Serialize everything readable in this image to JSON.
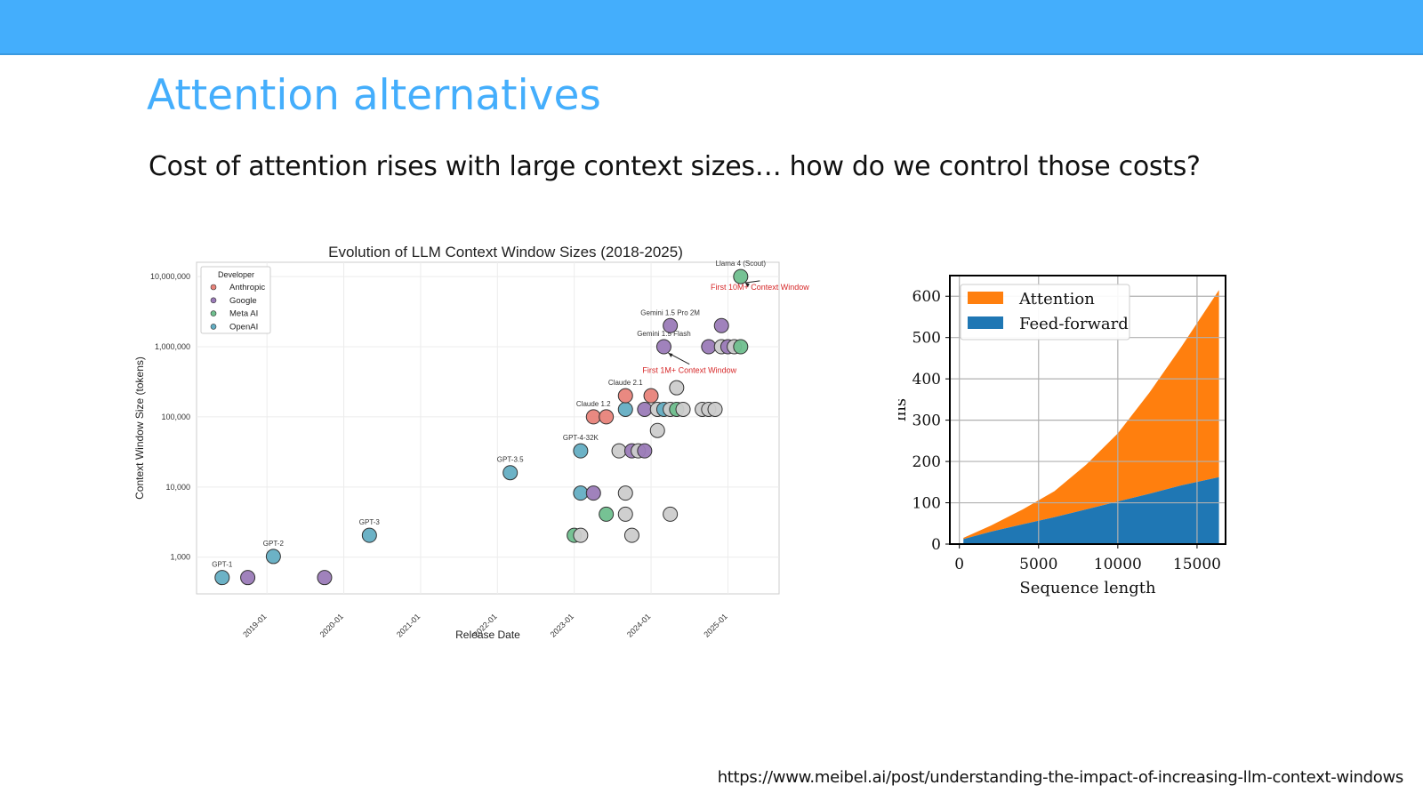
{
  "slide": {
    "title": "Attention alternatives",
    "subtitle": "Cost of attention rises with large context sizes… how do we control those costs?",
    "source": "https://www.meibel.ai/post/understanding-the-impact-of-increasing-llm-context-windows"
  },
  "colors": {
    "header_bar": "#44aefc",
    "title": "#44aefc",
    "Anthropic": "#e8837a",
    "Google": "#9b7bb8",
    "Meta AI": "#6fbf8e",
    "OpenAI": "#64aec3",
    "Other": "#cccccc",
    "Attention": "#ff7f0e",
    "Feed-forward": "#1f77b4",
    "annotation_red": "#d62728"
  },
  "chart_data": [
    {
      "type": "scatter",
      "title": "Evolution of LLM Context Window Sizes (2018-2025)",
      "xlabel": "Release Date",
      "ylabel": "Context Window Size (tokens)",
      "yscale": "log",
      "xlim": [
        "2018-02",
        "2025-09"
      ],
      "ylim": [
        300,
        16000000
      ],
      "x_ticks": [
        "2019-01",
        "2020-01",
        "2021-01",
        "2022-01",
        "2023-01",
        "2024-01",
        "2025-01"
      ],
      "y_ticks": [
        1000,
        10000,
        100000,
        1000000,
        10000000
      ],
      "y_tick_labels": [
        "1,000",
        "10,000",
        "100,000",
        "1,000,000",
        "10,000,000"
      ],
      "grid": true,
      "legend": {
        "title": "Developer",
        "position": "top-left",
        "entries": [
          "Anthropic",
          "Google",
          "Meta AI",
          "OpenAI"
        ]
      },
      "points": [
        {
          "x": "2018-06",
          "y": 512,
          "dev": "OpenAI",
          "label": "GPT-1"
        },
        {
          "x": "2018-10",
          "y": 512,
          "dev": "Google",
          "label": ""
        },
        {
          "x": "2019-02",
          "y": 1024,
          "dev": "OpenAI",
          "label": "GPT-2"
        },
        {
          "x": "2019-10",
          "y": 512,
          "dev": "Google",
          "label": ""
        },
        {
          "x": "2020-05",
          "y": 2048,
          "dev": "OpenAI",
          "label": "GPT-3"
        },
        {
          "x": "2022-03",
          "y": 16000,
          "dev": "OpenAI",
          "label": "GPT-3.5"
        },
        {
          "x": "2023-01",
          "y": 2048,
          "dev": "Meta AI",
          "label": ""
        },
        {
          "x": "2023-02",
          "y": 2048,
          "dev": "Other",
          "label": ""
        },
        {
          "x": "2023-02",
          "y": 8192,
          "dev": "OpenAI",
          "label": ""
        },
        {
          "x": "2023-02",
          "y": 32768,
          "dev": "OpenAI",
          "label": "GPT-4-32K"
        },
        {
          "x": "2023-04",
          "y": 8192,
          "dev": "Google",
          "label": ""
        },
        {
          "x": "2023-04",
          "y": 100000,
          "dev": "Anthropic",
          "label": "Claude 1.2"
        },
        {
          "x": "2023-06",
          "y": 4096,
          "dev": "Meta AI",
          "label": ""
        },
        {
          "x": "2023-06",
          "y": 100000,
          "dev": "Anthropic",
          "label": ""
        },
        {
          "x": "2023-08",
          "y": 32768,
          "dev": "Other",
          "label": ""
        },
        {
          "x": "2023-09",
          "y": 8192,
          "dev": "Other",
          "label": ""
        },
        {
          "x": "2023-09",
          "y": 4096,
          "dev": "Other",
          "label": ""
        },
        {
          "x": "2023-09",
          "y": 128000,
          "dev": "OpenAI",
          "label": ""
        },
        {
          "x": "2023-09",
          "y": 200000,
          "dev": "Anthropic",
          "label": "Claude 2.1"
        },
        {
          "x": "2023-10",
          "y": 2048,
          "dev": "Other",
          "label": ""
        },
        {
          "x": "2023-10",
          "y": 32768,
          "dev": "Google",
          "label": ""
        },
        {
          "x": "2023-11",
          "y": 32768,
          "dev": "Other",
          "label": ""
        },
        {
          "x": "2023-12",
          "y": 32768,
          "dev": "Google",
          "label": ""
        },
        {
          "x": "2023-12",
          "y": 128000,
          "dev": "Google",
          "label": ""
        },
        {
          "x": "2024-01",
          "y": 200000,
          "dev": "Anthropic",
          "label": ""
        },
        {
          "x": "2024-02",
          "y": 64000,
          "dev": "Other",
          "label": ""
        },
        {
          "x": "2024-02",
          "y": 128000,
          "dev": "Other",
          "label": ""
        },
        {
          "x": "2024-03",
          "y": 1000000,
          "dev": "Google",
          "label": "Gemini 1.5 Flash"
        },
        {
          "x": "2024-03",
          "y": 128000,
          "dev": "OpenAI",
          "label": ""
        },
        {
          "x": "2024-04",
          "y": 2000000,
          "dev": "Google",
          "label": "Gemini 1.5 Pro 2M"
        },
        {
          "x": "2024-04",
          "y": 4096,
          "dev": "Other",
          "label": ""
        },
        {
          "x": "2024-04",
          "y": 128000,
          "dev": "Other",
          "label": ""
        },
        {
          "x": "2024-05",
          "y": 128000,
          "dev": "Meta AI",
          "label": ""
        },
        {
          "x": "2024-05",
          "y": 260000,
          "dev": "Other",
          "label": ""
        },
        {
          "x": "2024-06",
          "y": 128000,
          "dev": "Other",
          "label": ""
        },
        {
          "x": "2024-09",
          "y": 128000,
          "dev": "Other",
          "label": ""
        },
        {
          "x": "2024-10",
          "y": 128000,
          "dev": "Other",
          "label": ""
        },
        {
          "x": "2024-10",
          "y": 1000000,
          "dev": "Google",
          "label": ""
        },
        {
          "x": "2024-11",
          "y": 128000,
          "dev": "Other",
          "label": ""
        },
        {
          "x": "2024-12",
          "y": 1000000,
          "dev": "Other",
          "label": ""
        },
        {
          "x": "2024-12",
          "y": 2000000,
          "dev": "Google",
          "label": ""
        },
        {
          "x": "2025-01",
          "y": 1000000,
          "dev": "Google",
          "label": ""
        },
        {
          "x": "2025-02",
          "y": 1000000,
          "dev": "Other",
          "label": ""
        },
        {
          "x": "2025-03",
          "y": 1000000,
          "dev": "Meta AI",
          "label": ""
        },
        {
          "x": "2025-03",
          "y": 10000000,
          "dev": "Meta AI",
          "label": "Llama 4 (Scout)"
        }
      ],
      "annotations": [
        {
          "text": "First 10M+ Context Window",
          "target": {
            "x": "2025-03",
            "y": 10000000
          },
          "text_at": {
            "x": "2025-06",
            "y": 6500000
          }
        },
        {
          "text": "First 1M+ Context Window",
          "target": {
            "x": "2024-03",
            "y": 1000000
          },
          "text_at": {
            "x": "2024-07",
            "y": 420000
          }
        }
      ]
    },
    {
      "type": "area",
      "stacked": true,
      "xlabel": "Sequence length",
      "ylabel": "ms",
      "xlim": [
        -600,
        16800
      ],
      "ylim": [
        0,
        650
      ],
      "x_ticks": [
        0,
        5000,
        10000,
        15000
      ],
      "y_ticks": [
        0,
        100,
        200,
        300,
        400,
        500,
        600
      ],
      "grid": true,
      "legend": {
        "position": "top-left",
        "entries": [
          "Attention",
          "Feed-forward"
        ]
      },
      "x": [
        256,
        2000,
        4000,
        6000,
        8000,
        10000,
        12000,
        14000,
        16384
      ],
      "series": [
        {
          "name": "Feed-forward",
          "values": [
            12,
            30,
            48,
            65,
            84,
            103,
            122,
            142,
            162
          ]
        },
        {
          "name": "Attention",
          "values": [
            3,
            15,
            36,
            63,
            108,
            165,
            245,
            335,
            453
          ]
        }
      ]
    }
  ]
}
